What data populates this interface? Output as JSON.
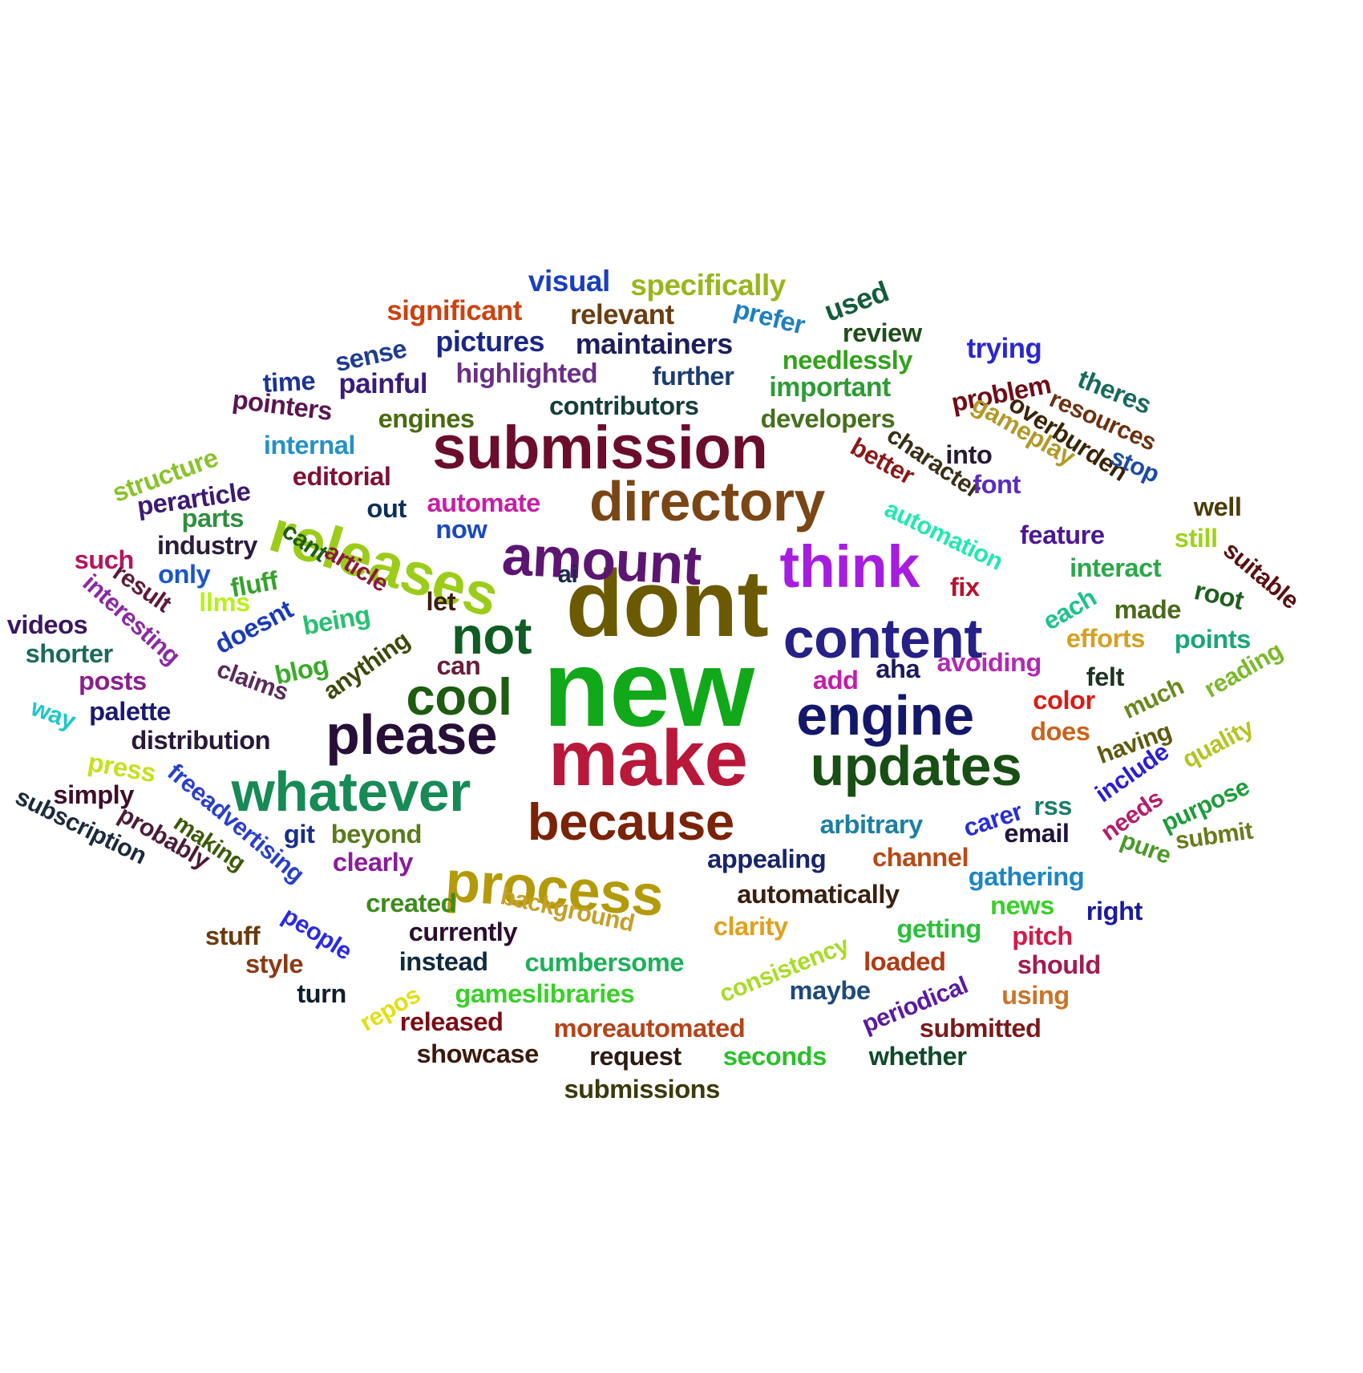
{
  "words": [
    {
      "text": "new",
      "color": "#11a81a"
    },
    {
      "text": "dont",
      "color": "#6b5a00"
    },
    {
      "text": "make",
      "color": "#b8183a"
    },
    {
      "text": "submission",
      "color": "#6a0e2c"
    },
    {
      "text": "directory",
      "color": "#7a4616"
    },
    {
      "text": "releases",
      "color": "#9ccc1a"
    },
    {
      "text": "amount",
      "color": "#5c1571"
    },
    {
      "text": "think",
      "color": "#a51ee0"
    },
    {
      "text": "content",
      "color": "#252187"
    },
    {
      "text": "not",
      "color": "#0f5d24"
    },
    {
      "text": "cool",
      "color": "#1e5c12"
    },
    {
      "text": "engine",
      "color": "#13186b"
    },
    {
      "text": "please",
      "color": "#261038"
    },
    {
      "text": "updates",
      "color": "#184f14"
    },
    {
      "text": "whatever",
      "color": "#178a56"
    },
    {
      "text": "because",
      "color": "#7a2308"
    },
    {
      "text": "process",
      "color": "#b39a0a"
    },
    {
      "text": "visual",
      "color": "#1a3fbc"
    },
    {
      "text": "specifically",
      "color": "#99b61c"
    },
    {
      "text": "significant",
      "color": "#c94311"
    },
    {
      "text": "relevant",
      "color": "#6b3d10"
    },
    {
      "text": "used",
      "color": "#135c3c"
    },
    {
      "text": "prefer",
      "color": "#1d7fbe"
    },
    {
      "text": "sense",
      "color": "#1f3c8f"
    },
    {
      "text": "pictures",
      "color": "#1b2785"
    },
    {
      "text": "maintainers",
      "color": "#1d1e5c"
    },
    {
      "text": "review",
      "color": "#1f4d1b"
    },
    {
      "text": "trying",
      "color": "#2b27cf"
    },
    {
      "text": "time",
      "color": "#1d3494"
    },
    {
      "text": "painful",
      "color": "#3a1b7a"
    },
    {
      "text": "highlighted",
      "color": "#6a2f86"
    },
    {
      "text": "further",
      "color": "#1c3c73"
    },
    {
      "text": "needlessly",
      "color": "#34a21b"
    },
    {
      "text": "important",
      "color": "#2f9b36"
    },
    {
      "text": "problem",
      "color": "#6e0c17"
    },
    {
      "text": "theres",
      "color": "#186a5c"
    },
    {
      "text": "pointers",
      "color": "#5a1650"
    },
    {
      "text": "engines",
      "color": "#4a6a10"
    },
    {
      "text": "contributors",
      "color": "#153d3b"
    },
    {
      "text": "developers",
      "color": "#46701b"
    },
    {
      "text": "overburden",
      "color": "#3a2405"
    },
    {
      "text": "resources",
      "color": "#6a3211"
    },
    {
      "text": "internal",
      "color": "#2591c4"
    },
    {
      "text": "gameplay",
      "color": "#b29a2a"
    },
    {
      "text": "structure",
      "color": "#8ac22a"
    },
    {
      "text": "perarticle",
      "color": "#3e1971"
    },
    {
      "text": "editorial",
      "color": "#7e1133"
    },
    {
      "text": "into",
      "color": "#271a36"
    },
    {
      "text": "better",
      "color": "#8a1a1a"
    },
    {
      "text": "character",
      "color": "#3a3016"
    },
    {
      "text": "stop",
      "color": "#1b4aa6"
    },
    {
      "text": "font",
      "color": "#5a2cc0"
    },
    {
      "text": "automate",
      "color": "#c61fa3"
    },
    {
      "text": "parts",
      "color": "#2f8f3f"
    },
    {
      "text": "out",
      "color": "#0f2e5a"
    },
    {
      "text": "now",
      "color": "#1b49c0"
    },
    {
      "text": "automation",
      "color": "#21e8b1"
    },
    {
      "text": "well",
      "color": "#4c3a0a"
    },
    {
      "text": "feature",
      "color": "#4c1891"
    },
    {
      "text": "still",
      "color": "#9fd11c"
    },
    {
      "text": "suitable",
      "color": "#5a1010"
    },
    {
      "text": "such",
      "color": "#b4155c"
    },
    {
      "text": "industry",
      "color": "#2d1b3c"
    },
    {
      "text": "only",
      "color": "#1a56c9"
    },
    {
      "text": "fluff",
      "color": "#38a12f"
    },
    {
      "text": "cant",
      "color": "#1f5d16"
    },
    {
      "text": "article",
      "color": "#8a1a3c"
    },
    {
      "text": "ai",
      "color": "#1a2950"
    },
    {
      "text": "interact",
      "color": "#2aa848"
    },
    {
      "text": "root",
      "color": "#1f5f1f"
    },
    {
      "text": "fix",
      "color": "#b8122c"
    },
    {
      "text": "made",
      "color": "#4a6a1c"
    },
    {
      "text": "each",
      "color": "#1cc28d"
    },
    {
      "text": "result",
      "color": "#5c1b3d"
    },
    {
      "text": "llms",
      "color": "#b9f01a"
    },
    {
      "text": "videos",
      "color": "#3a1760"
    },
    {
      "text": "interesting",
      "color": "#8b2aa3"
    },
    {
      "text": "doesnt",
      "color": "#1a3ab6"
    },
    {
      "text": "being",
      "color": "#27c071"
    },
    {
      "text": "let",
      "color": "#3d1b0f"
    },
    {
      "text": "efforts",
      "color": "#d4a124"
    },
    {
      "text": "points",
      "color": "#1aa676"
    },
    {
      "text": "shorter",
      "color": "#1b6a5c"
    },
    {
      "text": "blog",
      "color": "#3aaa2a"
    },
    {
      "text": "anything",
      "color": "#3d4a0c"
    },
    {
      "text": "can",
      "color": "#6a1e3a"
    },
    {
      "text": "add",
      "color": "#c21ea8"
    },
    {
      "text": "aha",
      "color": "#1a1a5c"
    },
    {
      "text": "avoiding",
      "color": "#b02ab2"
    },
    {
      "text": "felt",
      "color": "#1c3420"
    },
    {
      "text": "reading",
      "color": "#7ab92a"
    },
    {
      "text": "posts",
      "color": "#8c1e8e"
    },
    {
      "text": "much",
      "color": "#6a8a1c"
    },
    {
      "text": "claims",
      "color": "#5a2a5c"
    },
    {
      "text": "palette",
      "color": "#1c1a6e"
    },
    {
      "text": "color",
      "color": "#d81c14"
    },
    {
      "text": "way",
      "color": "#1ec7c7"
    },
    {
      "text": "having",
      "color": "#5e5a0f"
    },
    {
      "text": "does",
      "color": "#c9621c"
    },
    {
      "text": "quality",
      "color": "#b4c41f"
    },
    {
      "text": "distribution",
      "color": "#2a1838"
    },
    {
      "text": "press",
      "color": "#c6e01c"
    },
    {
      "text": "include",
      "color": "#2a1ed1"
    },
    {
      "text": "purpose",
      "color": "#1e9c3a"
    },
    {
      "text": "freeadvertising",
      "color": "#2a3fc8"
    },
    {
      "text": "simply",
      "color": "#3e0e2a"
    },
    {
      "text": "rss",
      "color": "#1c7c6a"
    },
    {
      "text": "carer",
      "color": "#2a2ed2"
    },
    {
      "text": "needs",
      "color": "#b31e6a"
    },
    {
      "text": "arbitrary",
      "color": "#1c7fa0"
    },
    {
      "text": "email",
      "color": "#21143a"
    },
    {
      "text": "subscription",
      "color": "#1c2a3c"
    },
    {
      "text": "probably",
      "color": "#4a1c3a"
    },
    {
      "text": "git",
      "color": "#1a2e8a"
    },
    {
      "text": "beyond",
      "color": "#5a7a1c"
    },
    {
      "text": "pure",
      "color": "#4a9a2a"
    },
    {
      "text": "submit",
      "color": "#6a7a1c"
    },
    {
      "text": "making",
      "color": "#3d5a0c"
    },
    {
      "text": "clearly",
      "color": "#8a1c9c"
    },
    {
      "text": "appealing",
      "color": "#17256a"
    },
    {
      "text": "channel",
      "color": "#b84a14"
    },
    {
      "text": "gathering",
      "color": "#1d86c4"
    },
    {
      "text": "created",
      "color": "#3d8a1c"
    },
    {
      "text": "background",
      "color": "#c4a02a"
    },
    {
      "text": "automatically",
      "color": "#3a2010"
    },
    {
      "text": "news",
      "color": "#3acf2a"
    },
    {
      "text": "right",
      "color": "#1a1aa0"
    },
    {
      "text": "stuff",
      "color": "#6a3a0c"
    },
    {
      "text": "people",
      "color": "#2a2ae0"
    },
    {
      "text": "currently",
      "color": "#2a0e2e"
    },
    {
      "text": "clarity",
      "color": "#e0a01c"
    },
    {
      "text": "getting",
      "color": "#2ac03a"
    },
    {
      "text": "pitch",
      "color": "#d01c4a"
    },
    {
      "text": "style",
      "color": "#8a3a14"
    },
    {
      "text": "instead",
      "color": "#102a3c"
    },
    {
      "text": "cumbersome",
      "color": "#1eb05a"
    },
    {
      "text": "consistency",
      "color": "#a8dc24"
    },
    {
      "text": "loaded",
      "color": "#b03a14"
    },
    {
      "text": "should",
      "color": "#a01c52"
    },
    {
      "text": "turn",
      "color": "#0f1f2a"
    },
    {
      "text": "repos",
      "color": "#e0e014"
    },
    {
      "text": "gameslibraries",
      "color": "#3acf2a"
    },
    {
      "text": "maybe",
      "color": "#1f4a7a"
    },
    {
      "text": "periodical",
      "color": "#5a1aa0"
    },
    {
      "text": "using",
      "color": "#c8742a"
    },
    {
      "text": "released",
      "color": "#7a0c14"
    },
    {
      "text": "moreautomated",
      "color": "#b4441a"
    },
    {
      "text": "submitted",
      "color": "#7a1a1a"
    },
    {
      "text": "showcase",
      "color": "#3a1a0c"
    },
    {
      "text": "request",
      "color": "#2a1a12"
    },
    {
      "text": "seconds",
      "color": "#2ac02a"
    },
    {
      "text": "whether",
      "color": "#0f4a2a"
    },
    {
      "text": "submissions",
      "color": "#3a3a0c"
    }
  ]
}
